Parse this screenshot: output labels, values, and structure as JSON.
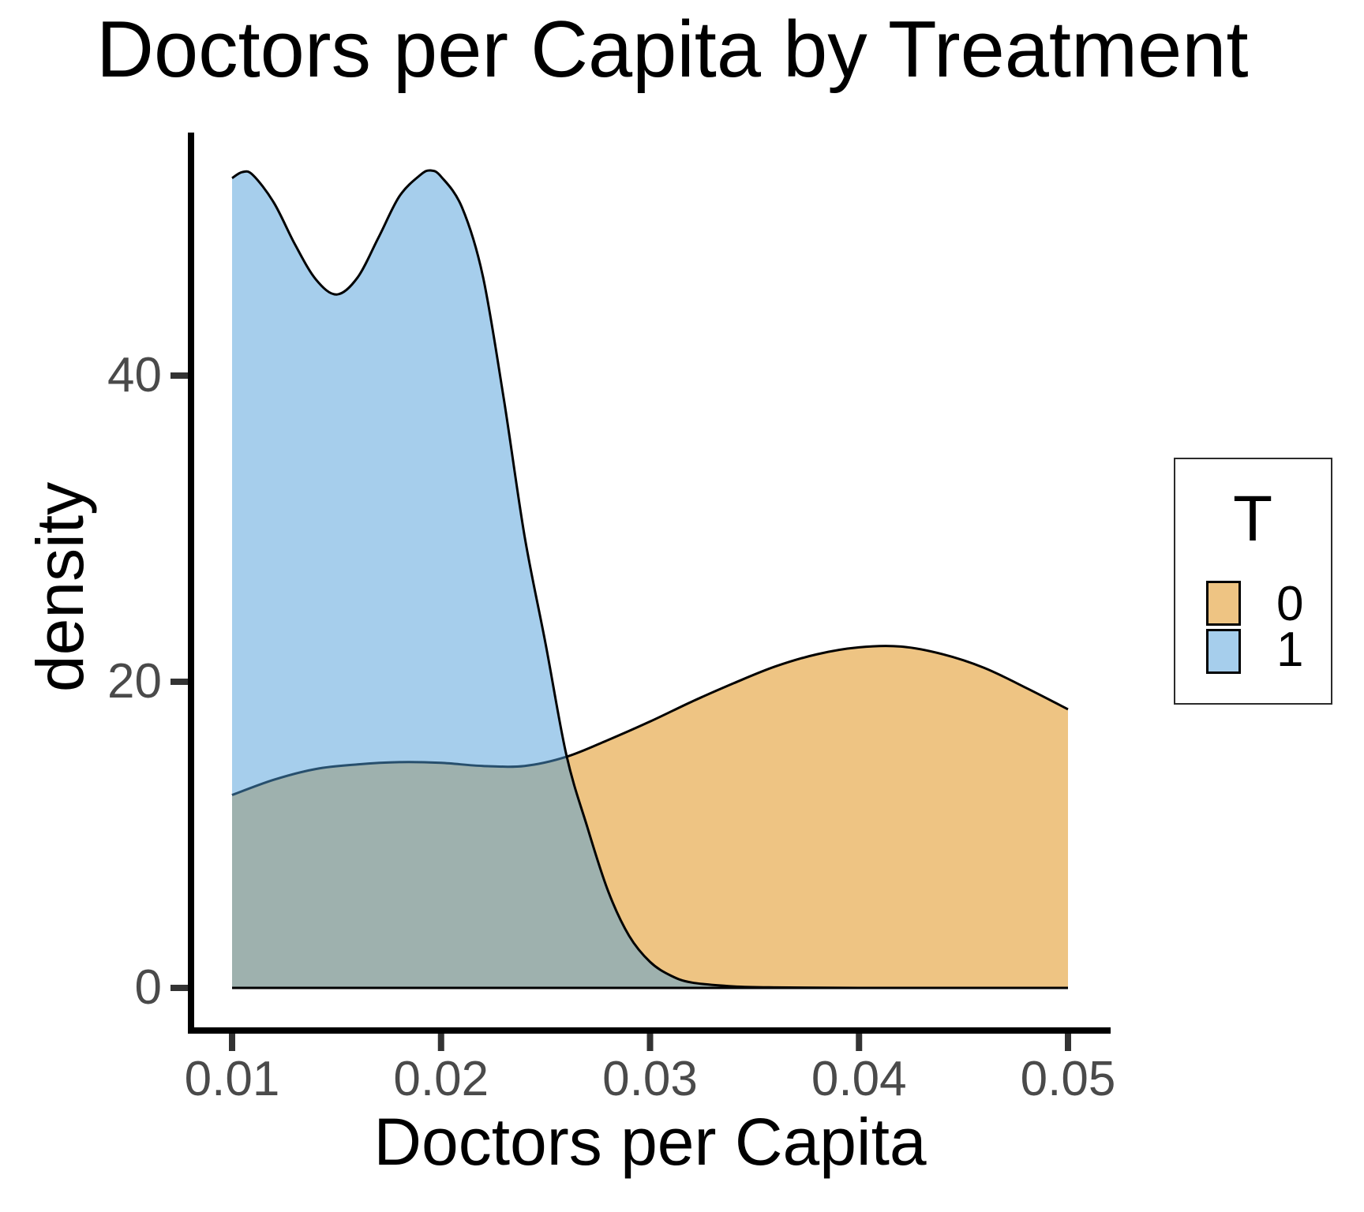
{
  "title": "Doctors per Capita by Treatment",
  "axes": {
    "x": {
      "label": "Doctors per Capita",
      "tick_labels": [
        "0.01",
        "0.02",
        "0.03",
        "0.04",
        "0.05"
      ],
      "tick_values": [
        0.01,
        0.02,
        0.03,
        0.04,
        0.05
      ]
    },
    "y": {
      "label": "density",
      "tick_labels": [
        "0",
        "20",
        "40"
      ],
      "tick_values": [
        0,
        20,
        40
      ]
    }
  },
  "legend": {
    "title": "T",
    "entries": [
      {
        "label": "0",
        "swatch_color": "#EEC483"
      },
      {
        "label": "1",
        "swatch_color": "#A6CEEC"
      }
    ]
  },
  "colors": {
    "series0_fill": "#EEC483",
    "series1_fill_rgba": "rgba(77,157,217,0.5)",
    "curve_stroke": "#000000",
    "axis_line": "#000000",
    "tick_mark": "#333333",
    "tick_label": "#4a4a4a",
    "overlap_appearance": "#9DB0AE"
  },
  "chart_data": {
    "type": "area",
    "subtype": "density",
    "title": "Doctors per Capita by Treatment",
    "xlabel": "Doctors per Capita",
    "ylabel": "density",
    "xlim": [
      0.01,
      0.05
    ],
    "ylim": [
      0,
      55
    ],
    "grid": false,
    "legend_position": "right",
    "legend_title": "T",
    "series": [
      {
        "name": "0",
        "fill": "#EEC483",
        "x": [
          0.01,
          0.012,
          0.014,
          0.016,
          0.018,
          0.02,
          0.022,
          0.024,
          0.026,
          0.028,
          0.03,
          0.032,
          0.034,
          0.036,
          0.038,
          0.04,
          0.042,
          0.044,
          0.046,
          0.048,
          0.05
        ],
        "y": [
          12.6,
          13.6,
          14.3,
          14.6,
          14.75,
          14.7,
          14.5,
          14.5,
          15.1,
          16.2,
          17.4,
          18.7,
          19.9,
          21.0,
          21.8,
          22.25,
          22.3,
          21.8,
          20.9,
          19.6,
          18.2
        ]
      },
      {
        "name": "1",
        "fill": "rgba(77,157,217,0.5)",
        "x": [
          0.01,
          0.0105,
          0.011,
          0.012,
          0.013,
          0.014,
          0.015,
          0.016,
          0.017,
          0.018,
          0.019,
          0.0195,
          0.02,
          0.021,
          0.022,
          0.023,
          0.024,
          0.025,
          0.026,
          0.027,
          0.028,
          0.029,
          0.03,
          0.031,
          0.032,
          0.034,
          0.036,
          0.04,
          0.045,
          0.05
        ],
        "y": [
          52.9,
          53.3,
          53.1,
          51.3,
          48.6,
          46.3,
          45.3,
          46.4,
          49.0,
          51.7,
          53.1,
          53.4,
          53.0,
          51.0,
          46.5,
          38.5,
          29.5,
          22.5,
          15.2,
          10.5,
          6.3,
          3.4,
          1.7,
          0.8,
          0.35,
          0.1,
          0.03,
          0.0,
          0.0,
          0.0
        ]
      }
    ]
  }
}
